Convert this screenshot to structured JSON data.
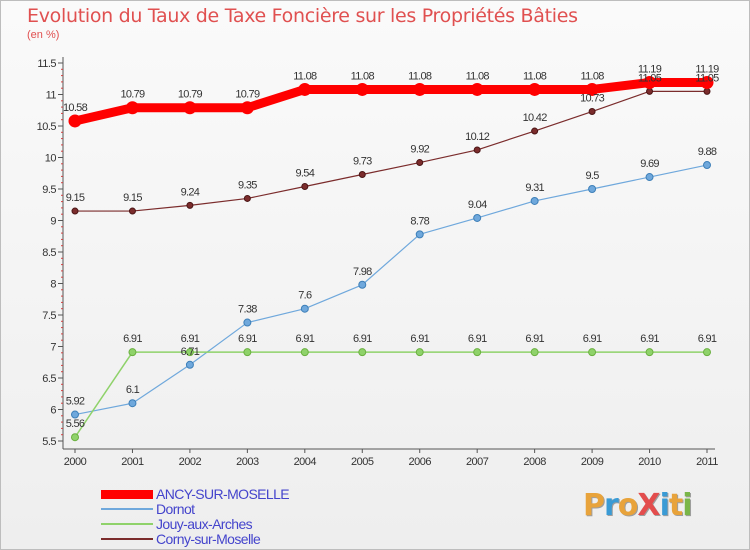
{
  "title": "Evolution du Taux de Taxe Foncière sur les Propriétés Bâties",
  "unit_label": "(en %)",
  "logo": {
    "text": "ProXiti",
    "letters": [
      "P",
      "r",
      "o",
      "X",
      "i",
      "t",
      "i"
    ],
    "colors": [
      "#e8a33b",
      "#3a9bd5",
      "#e8a33b",
      "#e34d4d",
      "#3a9bd5",
      "#e8a33b",
      "#7ab648"
    ]
  },
  "chart_data": {
    "type": "line",
    "x": [
      "2000",
      "2001",
      "2002",
      "2003",
      "2004",
      "2005",
      "2006",
      "2007",
      "2008",
      "2009",
      "2010",
      "2011"
    ],
    "ylim": [
      5.5,
      11.5
    ],
    "yticks": [
      "5.5",
      "6",
      "6.5",
      "7",
      "7.5",
      "8",
      "8.5",
      "9",
      "9.5",
      "10",
      "10.5",
      "11",
      "11.5"
    ],
    "grid": false,
    "legend_position": "bottom-left",
    "series": [
      {
        "name": "ANCY-SUR-MOSELLE",
        "color": "#ff0000",
        "values": [
          10.58,
          10.79,
          10.79,
          10.79,
          11.08,
          11.08,
          11.08,
          11.08,
          11.08,
          11.08,
          11.19,
          11.19
        ],
        "labels": [
          "10.58",
          "10.79",
          "10.79",
          "10.79",
          "11.08",
          "11.08",
          "11.08",
          "11.08",
          "11.08",
          "11.08",
          "11.19",
          "11.19"
        ]
      },
      {
        "name": "Dornot",
        "color": "#6fa8dc",
        "values": [
          5.92,
          6.1,
          6.71,
          7.38,
          7.6,
          7.98,
          8.78,
          9.04,
          9.31,
          9.5,
          9.69,
          9.88
        ],
        "labels": [
          "5.92",
          "6.1",
          "6.71",
          "7.38",
          "7.6",
          "7.98",
          "8.78",
          "9.04",
          "9.31",
          "9.5",
          "9.69",
          "9.88"
        ]
      },
      {
        "name": "Jouy-aux-Arches",
        "color": "#8fd26a",
        "values": [
          5.56,
          6.91,
          6.91,
          6.91,
          6.91,
          6.91,
          6.91,
          6.91,
          6.91,
          6.91,
          6.91,
          6.91
        ],
        "labels": [
          "5.56",
          "6.91",
          "6.91",
          "6.91",
          "6.91",
          "6.91",
          "6.91",
          "6.91",
          "6.91",
          "6.91",
          "6.91",
          "6.91"
        ]
      },
      {
        "name": "Corny-sur-Moselle",
        "color": "#7b2c2c",
        "values": [
          9.15,
          9.15,
          9.24,
          9.35,
          9.54,
          9.73,
          9.92,
          10.12,
          10.42,
          10.73,
          11.05,
          11.05
        ],
        "labels": [
          "9.15",
          "9.15",
          "9.24",
          "9.35",
          "9.54",
          "9.73",
          "9.92",
          "10.12",
          "10.42",
          "10.73",
          "11.05",
          "11.05"
        ]
      }
    ]
  }
}
